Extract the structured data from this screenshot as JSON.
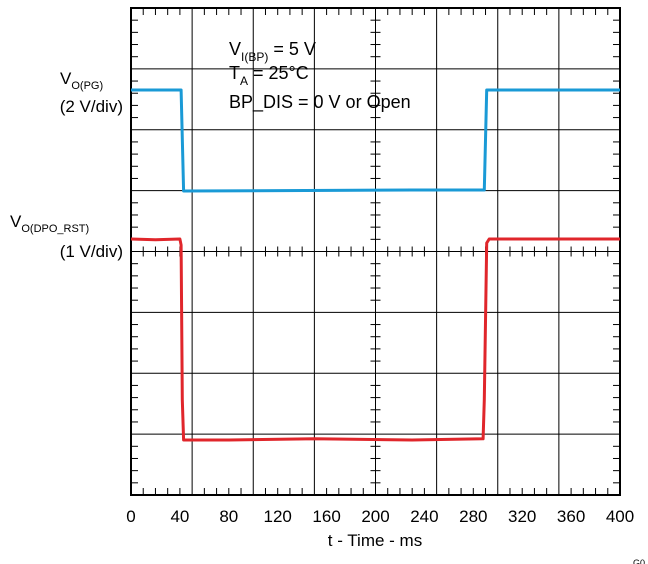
{
  "chart_data": {
    "type": "line",
    "xlabel": "t - Time - ms",
    "x_ticks": [
      "0",
      "40",
      "80",
      "120",
      "160",
      "200",
      "240",
      "280",
      "320",
      "360",
      "400"
    ],
    "xlim": [
      0,
      400
    ],
    "grid": true,
    "annotations": {
      "vin_main": "V",
      "vin_sub": "I(BP)",
      "vin_tail": " = 5 V",
      "ta_main": "T",
      "ta_sub": "A",
      "ta_tail": " = 25°C",
      "bpdis": "BP_DIS = 0 V or Open"
    },
    "channel_labels": {
      "pg_main": "V",
      "pg_sub": "O(PG)",
      "pg_scale": "(2 V/div)",
      "rst_main": "V",
      "rst_sub": "O(DPO_RST)",
      "rst_scale": "(1 V/div)"
    },
    "corner_text": "G0",
    "series": [
      {
        "channel": "pg",
        "color": "#1a9ad6",
        "points": [
          [
            0,
            5.0
          ],
          [
            41,
            5.0
          ],
          [
            43,
            0.0
          ],
          [
            230,
            0.05
          ],
          [
            289,
            0.05
          ],
          [
            291,
            5.0
          ],
          [
            400,
            5.0
          ]
        ]
      },
      {
        "channel": "rst",
        "color": "#e0262b",
        "points": [
          [
            0,
            5.0
          ],
          [
            20,
            4.98
          ],
          [
            40,
            5.0
          ],
          [
            41,
            4.85
          ],
          [
            42,
            1.0
          ],
          [
            43,
            0.0
          ],
          [
            80,
            0.0
          ],
          [
            150,
            0.03
          ],
          [
            230,
            0.0
          ],
          [
            288,
            0.03
          ],
          [
            289,
            1.0
          ],
          [
            291,
            4.9
          ],
          [
            293,
            5.0
          ],
          [
            400,
            5.0
          ]
        ]
      }
    ]
  }
}
